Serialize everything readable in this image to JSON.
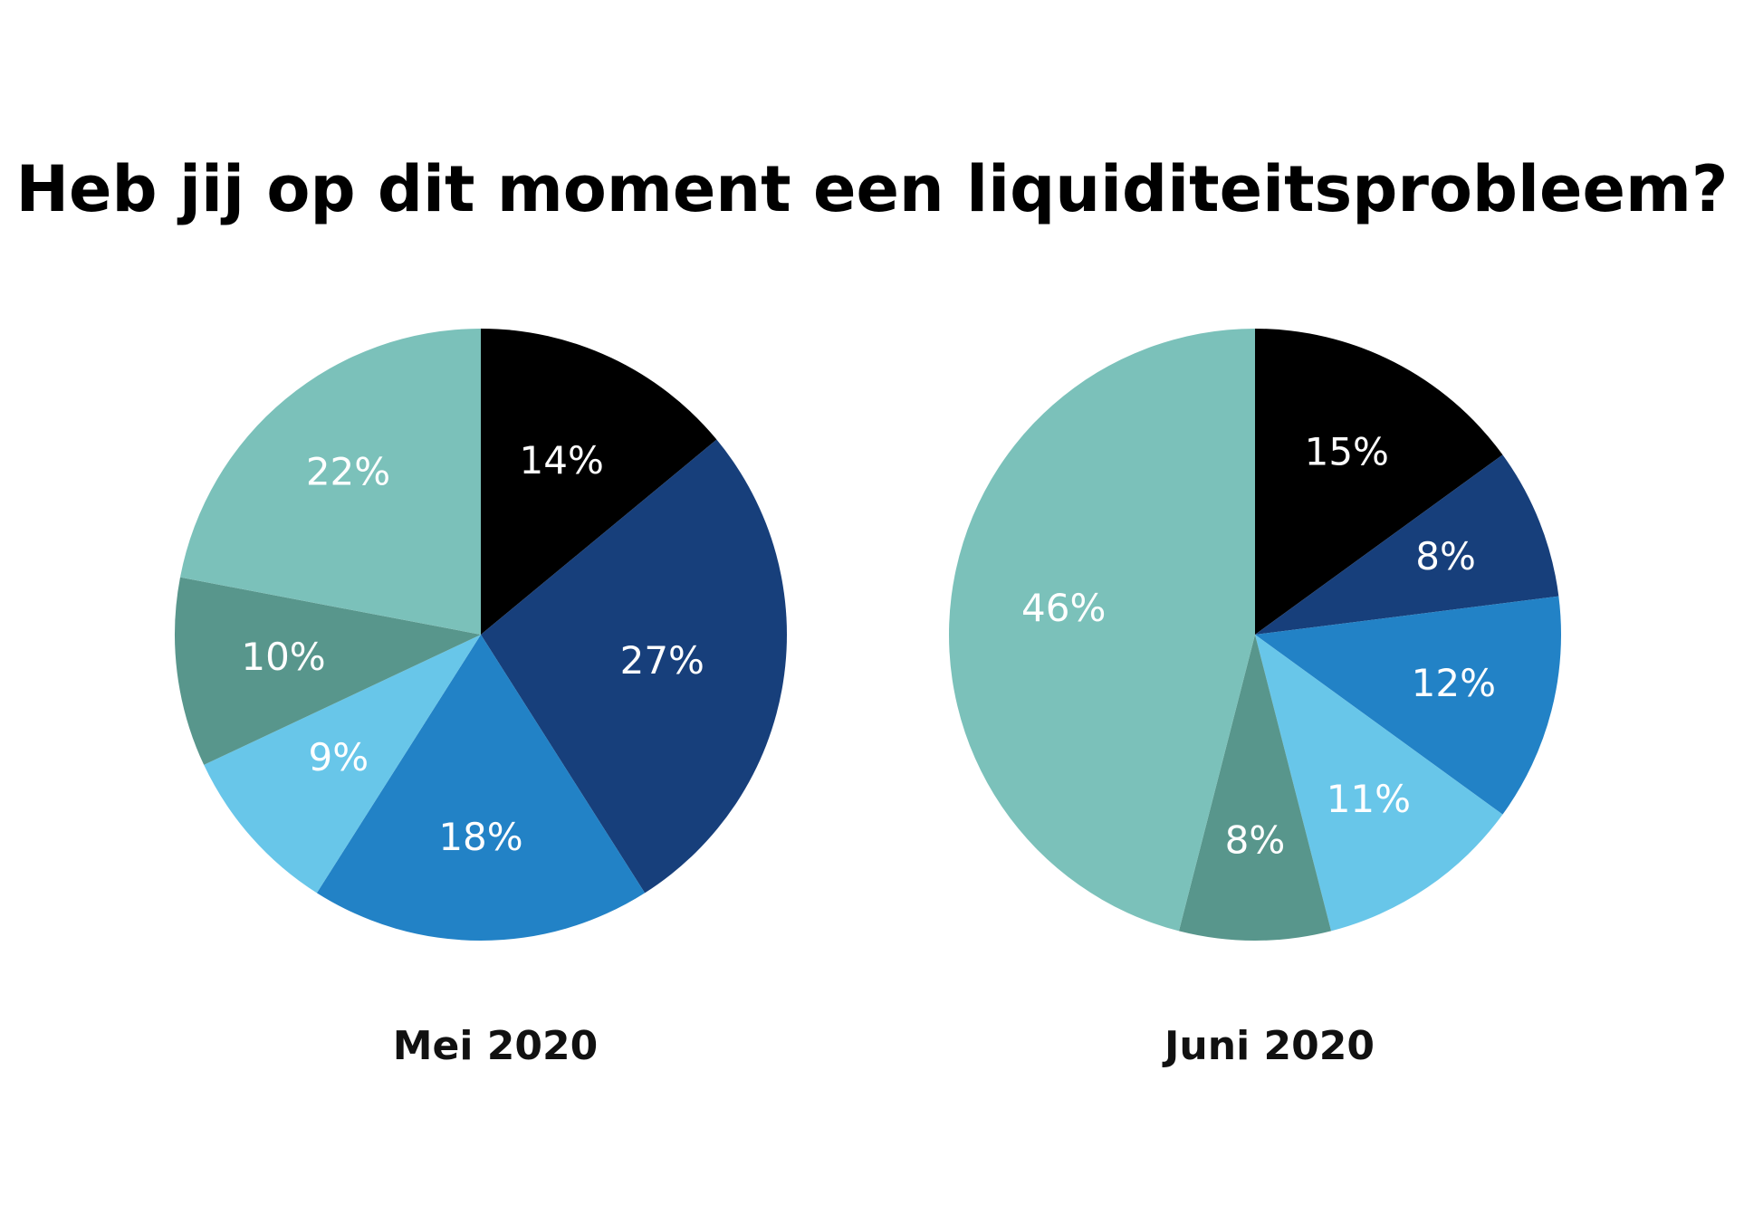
{
  "title": "Heb jij op dit moment een liquiditeitsprobleem?",
  "chart_data": [
    {
      "type": "pie",
      "caption": "Mei 2020",
      "slices": [
        {
          "label": "14%",
          "value": 14,
          "color": "#000000"
        },
        {
          "label": "27%",
          "value": 27,
          "color": "#173f7b"
        },
        {
          "label": "18%",
          "value": 18,
          "color": "#2282c6"
        },
        {
          "label": "9%",
          "value": 9,
          "color": "#68c6e9"
        },
        {
          "label": "10%",
          "value": 10,
          "color": "#58968c"
        },
        {
          "label": "22%",
          "value": 22,
          "color": "#7bc1ba"
        }
      ]
    },
    {
      "type": "pie",
      "caption": "Juni 2020",
      "slices": [
        {
          "label": "15%",
          "value": 15,
          "color": "#000000"
        },
        {
          "label": "8%",
          "value": 8,
          "color": "#173f7b"
        },
        {
          "label": "12%",
          "value": 12,
          "color": "#2282c6"
        },
        {
          "label": "11%",
          "value": 11,
          "color": "#68c6e9"
        },
        {
          "label": "8%",
          "value": 8,
          "color": "#58968c"
        },
        {
          "label": "46%",
          "value": 46,
          "color": "#7bc1ba"
        }
      ]
    }
  ]
}
